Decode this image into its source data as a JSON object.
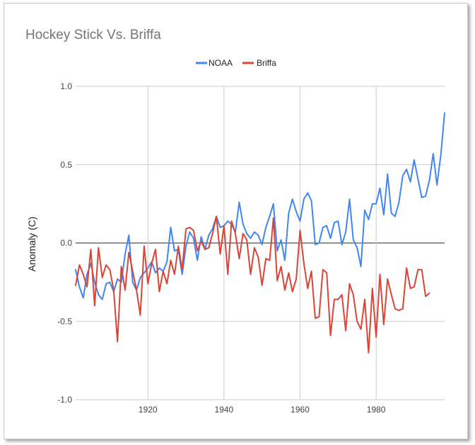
{
  "chart_data": {
    "type": "line",
    "title": "Hockey Stick Vs. Briffa",
    "xlabel": "",
    "ylabel": "Anomaly (C)",
    "xlim": [
      1901,
      1998
    ],
    "ylim": [
      -1.0,
      1.0
    ],
    "x_ticks": [
      "1920",
      "1940",
      "1960",
      "1980"
    ],
    "x_tick_values": [
      1920,
      1940,
      1960,
      1980
    ],
    "y_ticks": [
      "1.0",
      "0.5",
      "0.0",
      "-0.5",
      "-1.0"
    ],
    "y_tick_values": [
      1.0,
      0.5,
      0.0,
      -0.5,
      -1.0
    ],
    "grid": true,
    "legend_position": "top-center",
    "series": [
      {
        "name": "NOAA",
        "color": "#4285f4",
        "x": [
          1901,
          1902,
          1903,
          1904,
          1905,
          1906,
          1907,
          1908,
          1909,
          1910,
          1911,
          1912,
          1913,
          1914,
          1915,
          1916,
          1917,
          1918,
          1919,
          1920,
          1921,
          1922,
          1923,
          1924,
          1925,
          1926,
          1927,
          1928,
          1929,
          1930,
          1931,
          1932,
          1933,
          1934,
          1935,
          1936,
          1937,
          1938,
          1939,
          1940,
          1941,
          1942,
          1943,
          1944,
          1945,
          1946,
          1947,
          1948,
          1949,
          1950,
          1951,
          1952,
          1953,
          1954,
          1955,
          1956,
          1957,
          1958,
          1959,
          1960,
          1961,
          1962,
          1963,
          1964,
          1965,
          1966,
          1967,
          1968,
          1969,
          1970,
          1971,
          1972,
          1973,
          1974,
          1975,
          1976,
          1977,
          1978,
          1979,
          1980,
          1981,
          1982,
          1983,
          1984,
          1985,
          1986,
          1987,
          1988,
          1989,
          1990,
          1991,
          1992,
          1993,
          1994,
          1995,
          1996,
          1997,
          1998
        ],
        "y": [
          -0.17,
          -0.28,
          -0.35,
          -0.2,
          -0.13,
          -0.25,
          -0.33,
          -0.36,
          -0.26,
          -0.25,
          -0.31,
          -0.23,
          -0.25,
          -0.07,
          0.05,
          -0.25,
          -0.3,
          -0.22,
          -0.19,
          -0.16,
          -0.12,
          -0.19,
          -0.16,
          -0.18,
          -0.12,
          0.1,
          -0.05,
          -0.04,
          -0.2,
          -0.02,
          0.07,
          0.03,
          -0.11,
          0.04,
          -0.04,
          0.05,
          0.09,
          0.17,
          0.1,
          0.11,
          0.14,
          0.12,
          0.07,
          0.26,
          0.12,
          0.06,
          0.03,
          0.07,
          0.05,
          -0.01,
          0.1,
          0.17,
          0.25,
          -0.05,
          0.02,
          -0.11,
          0.19,
          0.28,
          0.2,
          0.14,
          0.28,
          0.32,
          0.27,
          -0.01,
          0.0,
          0.1,
          0.11,
          0.03,
          0.13,
          0.14,
          -0.01,
          0.07,
          0.28,
          0.02,
          -0.03,
          -0.15,
          0.21,
          0.15,
          0.25,
          0.25,
          0.35,
          0.18,
          0.44,
          0.19,
          0.17,
          0.26,
          0.43,
          0.47,
          0.39,
          0.53,
          0.41,
          0.29,
          0.3,
          0.4,
          0.57,
          0.37,
          0.56,
          0.83
        ]
      },
      {
        "name": "Briffa",
        "color": "#db4437",
        "x": [
          1901,
          1902,
          1903,
          1904,
          1905,
          1906,
          1907,
          1908,
          1909,
          1910,
          1911,
          1912,
          1913,
          1914,
          1915,
          1916,
          1917,
          1918,
          1919,
          1920,
          1921,
          1922,
          1923,
          1924,
          1925,
          1926,
          1927,
          1928,
          1929,
          1930,
          1931,
          1932,
          1933,
          1934,
          1935,
          1936,
          1937,
          1938,
          1939,
          1940,
          1941,
          1942,
          1943,
          1944,
          1945,
          1946,
          1947,
          1948,
          1949,
          1950,
          1951,
          1952,
          1953,
          1954,
          1955,
          1956,
          1957,
          1958,
          1959,
          1960,
          1961,
          1962,
          1963,
          1964,
          1965,
          1966,
          1967,
          1968,
          1969,
          1970,
          1971,
          1972,
          1973,
          1974,
          1975,
          1976,
          1977,
          1978,
          1979,
          1980,
          1981,
          1982,
          1983,
          1984,
          1985,
          1986,
          1987,
          1988,
          1989,
          1990,
          1991,
          1992,
          1993,
          1994
        ],
        "y": [
          -0.27,
          -0.14,
          -0.2,
          -0.28,
          -0.04,
          -0.4,
          -0.03,
          -0.22,
          -0.14,
          -0.17,
          -0.3,
          -0.63,
          -0.15,
          -0.3,
          -0.06,
          -0.18,
          -0.3,
          -0.46,
          -0.02,
          -0.26,
          -0.13,
          -0.04,
          -0.31,
          -0.18,
          -0.26,
          -0.11,
          -0.2,
          -0.02,
          -0.17,
          0.09,
          0.1,
          0.08,
          -0.05,
          0.01,
          -0.04,
          -0.03,
          0.06,
          0.17,
          -0.07,
          0.11,
          -0.2,
          0.14,
          0.06,
          -0.1,
          0.06,
          0.02,
          -0.2,
          -0.03,
          -0.09,
          -0.27,
          -0.1,
          -0.11,
          0.16,
          -0.24,
          -0.15,
          -0.3,
          -0.19,
          -0.31,
          -0.23,
          0.08,
          -0.13,
          -0.29,
          -0.18,
          -0.48,
          -0.47,
          -0.17,
          -0.19,
          -0.59,
          -0.36,
          -0.36,
          -0.33,
          -0.56,
          -0.26,
          -0.33,
          -0.5,
          -0.55,
          -0.36,
          -0.7,
          -0.29,
          -0.6,
          -0.2,
          -0.52,
          -0.23,
          -0.33,
          -0.42,
          -0.43,
          -0.42,
          -0.16,
          -0.29,
          -0.28,
          -0.17,
          -0.17,
          -0.34,
          -0.32
        ]
      }
    ]
  }
}
